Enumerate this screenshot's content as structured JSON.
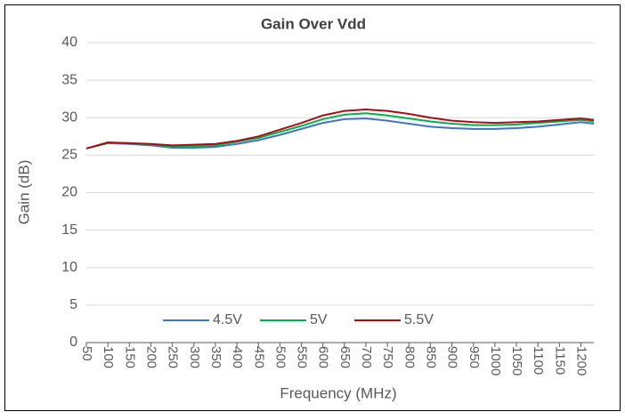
{
  "chart_data": {
    "type": "line",
    "title": "Gain Over Vdd",
    "x_label": "Frequency (MHz)",
    "y_label": "Gain (dB)",
    "x": [
      50,
      100,
      150,
      200,
      250,
      300,
      350,
      400,
      450,
      500,
      550,
      600,
      650,
      700,
      750,
      800,
      850,
      900,
      950,
      1000,
      1050,
      1100,
      1150,
      1200,
      1230
    ],
    "series": [
      {
        "name": "4.5V",
        "color": "#4472c4",
        "values": [
          25.9,
          26.6,
          26.5,
          26.3,
          26.0,
          26.0,
          26.1,
          26.5,
          27.0,
          27.7,
          28.5,
          29.3,
          29.8,
          29.9,
          29.6,
          29.2,
          28.8,
          28.6,
          28.5,
          28.5,
          28.6,
          28.8,
          29.1,
          29.4,
          29.2
        ]
      },
      {
        "name": "5V",
        "color": "#00b050",
        "values": [
          25.9,
          26.6,
          26.6,
          26.4,
          26.2,
          26.2,
          26.3,
          26.8,
          27.3,
          28.1,
          28.9,
          29.8,
          30.4,
          30.6,
          30.3,
          29.9,
          29.5,
          29.2,
          29.0,
          29.0,
          29.1,
          29.3,
          29.5,
          29.7,
          29.5
        ]
      },
      {
        "name": "5.5V",
        "color": "#a50f15",
        "values": [
          25.9,
          26.7,
          26.6,
          26.5,
          26.3,
          26.4,
          26.5,
          26.9,
          27.5,
          28.4,
          29.3,
          30.3,
          30.9,
          31.1,
          30.9,
          30.5,
          30.0,
          29.6,
          29.4,
          29.3,
          29.4,
          29.5,
          29.7,
          29.9,
          29.7
        ]
      }
    ],
    "xlim": [
      50,
      1230
    ],
    "xticks": [
      50,
      100,
      150,
      200,
      250,
      300,
      350,
      400,
      450,
      500,
      550,
      600,
      650,
      700,
      750,
      800,
      850,
      900,
      950,
      1000,
      1050,
      1100,
      1150,
      1200
    ],
    "ylim": [
      0,
      40
    ],
    "yticks": [
      0,
      5,
      10,
      15,
      20,
      25,
      30,
      35,
      40
    ],
    "grid": true,
    "legend": "bottom"
  }
}
